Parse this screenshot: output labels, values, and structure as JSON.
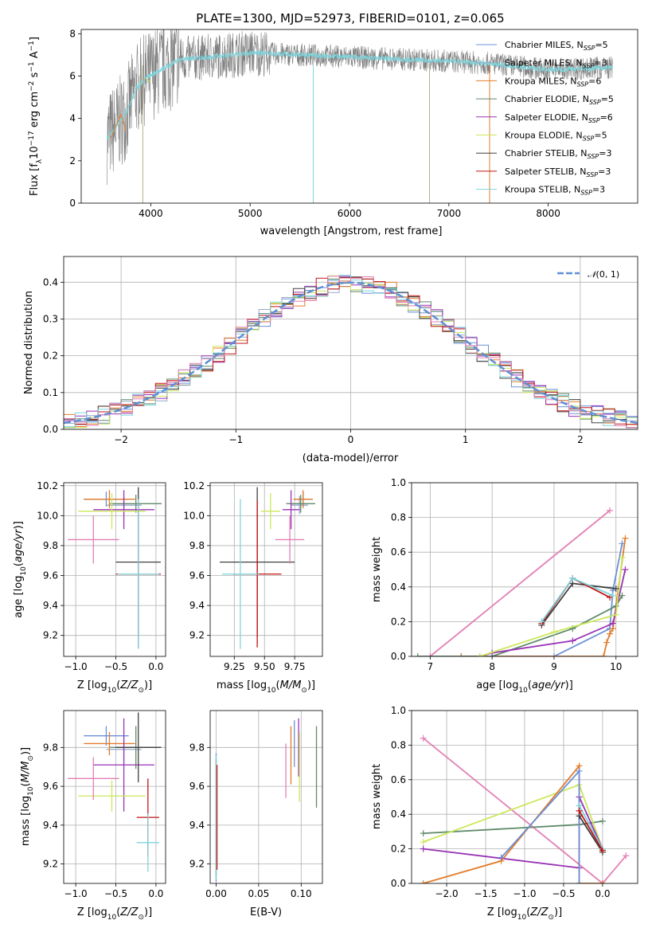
{
  "figure_title": "PLATE=1300, MJD=52973, FIBERID=0101, z=0.065",
  "colors": {
    "Chabrier MILES": "#6b8fd6",
    "Salpeter MILES": "#9aa8c8",
    "Kroupa MILES": "#e37c2a",
    "Chabrier ELODIE": "#5f8a6a",
    "Salpeter ELODIE": "#9932b5",
    "Kroupa ELODIE": "#cbe85a",
    "Chabrier STELIB": "#404040",
    "Salpeter STELIB": "#c41414",
    "Kroupa STELIB": "#7ed4dc",
    "pink": "#e37fb4",
    "data": "#808080",
    "normal_curve": "#5f8fd6"
  },
  "chart_data": [
    {
      "id": "spectrum",
      "type": "line",
      "title": "PLATE=1300, MJD=52973, FIBERID=0101, z=0.065",
      "xlabel": "wavelength [Angstrom, rest frame]",
      "ylabel": "Flux [f_λ 10^-17 erg cm^-2 s^-1 A^-1]",
      "xlim": [
        3300,
        8900
      ],
      "ylim": [
        0,
        8.2
      ],
      "xticks": [
        4000,
        5000,
        6000,
        7000,
        8000
      ],
      "yticks": [
        0,
        2,
        4,
        6,
        8
      ],
      "grid": false,
      "legend_placement": "right",
      "legend": [
        "Chabrier MILES, N_SSP=5",
        "Salpeter MILES, N_SSP=3",
        "Kroupa MILES, N_SSP=6",
        "Chabrier ELODIE, N_SSP=5",
        "Salpeter ELODIE, N_SSP=6",
        "Kroupa ELODIE, N_SSP=5",
        "Chabrier STELIB, N_SSP=3",
        "Salpeter STELIB, N_SSP=3",
        "Kroupa STELIB, N_SSP=3"
      ],
      "continuum": {
        "x": [
          3550,
          3650,
          3750,
          3850,
          3950,
          4100,
          4300,
          4600,
          5000,
          5500,
          6000,
          6500,
          7000,
          7400,
          8000,
          8600
        ],
        "y": [
          3.0,
          3.6,
          4.2,
          5.4,
          5.9,
          6.3,
          6.8,
          6.9,
          7.1,
          7.0,
          6.9,
          6.8,
          6.7,
          6.6,
          6.3,
          6.4
        ]
      }
    },
    {
      "id": "residual_histogram",
      "type": "line",
      "xlabel": "(data-model)/error",
      "ylabel": "Normed distribution",
      "xlim": [
        -2.5,
        2.5
      ],
      "ylim": [
        0,
        0.47
      ],
      "xticks": [
        -2,
        -1,
        0,
        1,
        2
      ],
      "yticks": [
        0.0,
        0.1,
        0.2,
        0.3,
        0.4
      ],
      "grid": true,
      "legend_placement": "top-right",
      "legend": [
        "N(0,1)"
      ],
      "curve": "normal pdf, mean 0, sigma 1",
      "bin_width": 0.1
    },
    {
      "id": "age_vs_Z",
      "type": "scatter",
      "xlabel": "Z [log10(Z/Z_sun)]",
      "ylabel": "age [log10(age/yr)]",
      "xlim": [
        -1.15,
        0.12
      ],
      "ylim": [
        9.06,
        10.22
      ],
      "xticks": [
        -1.0,
        -0.5,
        0.0
      ],
      "yticks": [
        9.2,
        9.4,
        9.6,
        9.8,
        10.0,
        10.2
      ],
      "grid": true,
      "points": [
        {
          "series": "Chabrier MILES",
          "x": -0.62,
          "xerr": 0.28,
          "y": 10.11,
          "yerr": 0.05
        },
        {
          "series": "Salpeter MILES",
          "x": -0.4,
          "xerr": 0.22,
          "y": 10.07,
          "yerr": 0.06
        },
        {
          "series": "Kroupa MILES",
          "x": -0.58,
          "xerr": 0.32,
          "y": 10.11,
          "yerr": 0.06
        },
        {
          "series": "Chabrier ELODIE",
          "x": -0.25,
          "xerr": 0.32,
          "y": 10.08,
          "yerr": 0.06
        },
        {
          "series": "Salpeter ELODIE",
          "x": -0.4,
          "xerr": 0.38,
          "y": 10.04,
          "yerr": 0.13
        },
        {
          "series": "Kroupa ELODIE",
          "x": -0.55,
          "xerr": 0.42,
          "y": 10.03,
          "yerr": 0.12
        },
        {
          "series": "Chabrier STELIB",
          "x": -0.22,
          "xerr": 0.28,
          "y": 9.69,
          "yerr": 0.5
        },
        {
          "series": "Salpeter STELIB",
          "x": -0.22,
          "xerr": 0.28,
          "y": 9.61,
          "yerr": 0.49
        },
        {
          "series": "Kroupa STELIB",
          "x": -0.22,
          "xerr": 0.26,
          "y": 9.61,
          "yerr": 0.5
        },
        {
          "series": "pink",
          "x": -0.78,
          "xerr": 0.32,
          "y": 9.84,
          "yerr": 0.16
        }
      ]
    },
    {
      "id": "age_vs_mass",
      "type": "scatter",
      "xlabel": "mass [log10(M/M_sun)]",
      "ylabel": "",
      "xlim": [
        9.05,
        9.98
      ],
      "ylim": [
        9.06,
        10.22
      ],
      "xticks": [
        9.25,
        9.5,
        9.75
      ],
      "yticks": [
        9.2,
        9.4,
        9.6,
        9.8,
        10.0,
        10.2
      ],
      "grid": true,
      "points": [
        {
          "series": "Chabrier MILES",
          "x": 9.82,
          "xerr": 0.08,
          "y": 10.11,
          "yerr": 0.05
        },
        {
          "series": "Salpeter MILES",
          "x": 9.79,
          "xerr": 0.07,
          "y": 10.07,
          "yerr": 0.06
        },
        {
          "series": "Kroupa MILES",
          "x": 9.82,
          "xerr": 0.08,
          "y": 10.11,
          "yerr": 0.06
        },
        {
          "series": "Chabrier ELODIE",
          "x": 9.8,
          "xerr": 0.12,
          "y": 10.08,
          "yerr": 0.06
        },
        {
          "series": "Salpeter ELODIE",
          "x": 9.72,
          "xerr": 0.07,
          "y": 10.04,
          "yerr": 0.13
        },
        {
          "series": "Kroupa ELODIE",
          "x": 9.55,
          "xerr": 0.08,
          "y": 10.03,
          "yerr": 0.12
        },
        {
          "series": "Chabrier STELIB",
          "x": 9.44,
          "xerr": 0.31,
          "y": 9.69,
          "yerr": 0.5
        },
        {
          "series": "Salpeter STELIB",
          "x": 9.44,
          "xerr": 0.2,
          "y": 9.61,
          "yerr": 0.49
        },
        {
          "series": "Kroupa STELIB",
          "x": 9.3,
          "xerr": 0.15,
          "y": 9.61,
          "yerr": 0.5
        },
        {
          "series": "pink",
          "x": 9.71,
          "xerr": 0.12,
          "y": 9.84,
          "yerr": 0.16
        }
      ]
    },
    {
      "id": "massweight_vs_age",
      "type": "line",
      "xlabel": "age [log10(age/yr)]",
      "ylabel": "mass weight",
      "xlim": [
        6.7,
        10.35
      ],
      "ylim": [
        0.0,
        1.0
      ],
      "xticks": [
        7,
        8,
        9,
        10
      ],
      "yticks": [
        0.0,
        0.2,
        0.4,
        0.6,
        0.8,
        1.0
      ],
      "grid": true,
      "series": [
        {
          "name": "pink",
          "x": [
            7.0,
            9.9
          ],
          "y": [
            0.0,
            0.84
          ]
        },
        {
          "name": "Chabrier MILES",
          "x": [
            7.5,
            9.0,
            9.9,
            9.95,
            10.1
          ],
          "y": [
            0.0,
            0.0,
            0.16,
            0.38,
            0.65
          ]
        },
        {
          "name": "Kroupa MILES",
          "x": [
            7.5,
            9.8,
            9.85,
            9.9,
            9.95,
            10.15
          ],
          "y": [
            0.0,
            0.0,
            0.08,
            0.13,
            0.16,
            0.68
          ]
        },
        {
          "name": "Chabrier ELODIE",
          "x": [
            6.8,
            8.0,
            9.3,
            10.0,
            10.1
          ],
          "y": [
            0.0,
            0.0,
            0.16,
            0.29,
            0.35
          ]
        },
        {
          "name": "Salpeter ELODIE",
          "x": [
            7.8,
            8.0,
            9.3,
            9.95,
            10.15
          ],
          "y": [
            0.0,
            0.02,
            0.09,
            0.19,
            0.5
          ]
        },
        {
          "name": "Kroupa ELODIE",
          "x": [
            7.8,
            9.0,
            10.0,
            10.1
          ],
          "y": [
            0.0,
            0.14,
            0.24,
            0.57
          ]
        },
        {
          "name": "Chabrier STELIB",
          "x": [
            8.8,
            9.3,
            10.0
          ],
          "y": [
            0.18,
            0.42,
            0.39
          ]
        },
        {
          "name": "Salpeter STELIB",
          "x": [
            8.8,
            9.3,
            9.9
          ],
          "y": [
            0.19,
            0.45,
            0.34
          ]
        },
        {
          "name": "Kroupa STELIB",
          "x": [
            8.8,
            9.3,
            9.95
          ],
          "y": [
            0.2,
            0.45,
            0.35
          ]
        }
      ]
    },
    {
      "id": "mass_vs_Z",
      "type": "scatter",
      "xlabel": "Z [log10(Z/Z_sun)]",
      "ylabel": "mass [log10(M/M_sun)]",
      "xlim": [
        -1.15,
        0.12
      ],
      "ylim": [
        9.1,
        9.99
      ],
      "xticks": [
        -1.0,
        -0.5,
        0.0
      ],
      "yticks": [
        9.2,
        9.4,
        9.6,
        9.8
      ],
      "grid": true,
      "points": [
        {
          "series": "Chabrier MILES",
          "x": -0.62,
          "xerr": 0.28,
          "y": 9.86,
          "yerr": 0.05
        },
        {
          "series": "Salpeter MILES",
          "x": -0.4,
          "xerr": 0.22,
          "y": 9.79,
          "yerr": 0.06
        },
        {
          "series": "Kroupa MILES",
          "x": -0.58,
          "xerr": 0.32,
          "y": 9.82,
          "yerr": 0.06
        },
        {
          "series": "Chabrier ELODIE",
          "x": -0.25,
          "xerr": 0.32,
          "y": 9.8,
          "yerr": 0.11
        },
        {
          "series": "Salpeter ELODIE",
          "x": -0.4,
          "xerr": 0.38,
          "y": 9.71,
          "yerr": 0.24
        },
        {
          "series": "Kroupa ELODIE",
          "x": -0.55,
          "xerr": 0.42,
          "y": 9.55,
          "yerr": 0.08
        },
        {
          "series": "Chabrier STELIB",
          "x": -0.22,
          "xerr": 0.28,
          "y": 9.8,
          "yerr": 0.18
        },
        {
          "series": "Salpeter STELIB",
          "x": -0.1,
          "xerr": 0.14,
          "y": 9.44,
          "yerr": 0.2
        },
        {
          "series": "Kroupa STELIB",
          "x": -0.1,
          "xerr": 0.14,
          "y": 9.31,
          "yerr": 0.15
        },
        {
          "series": "pink",
          "x": -0.78,
          "xerr": 0.32,
          "y": 9.64,
          "yerr": 0.11
        }
      ]
    },
    {
      "id": "mass_vs_ebv",
      "type": "scatter",
      "xlabel": "E(B-V)",
      "ylabel": "",
      "xlim": [
        -0.007,
        0.125
      ],
      "ylim": [
        9.1,
        9.99
      ],
      "xticks": [
        0.0,
        0.05,
        0.1
      ],
      "yticks": [
        9.2,
        9.4,
        9.6,
        9.8
      ],
      "grid": true,
      "points": [
        {
          "series": "Chabrier MILES",
          "x": 0.0,
          "y": 9.44,
          "yerr": 0.33
        },
        {
          "series": "Salpeter MILES",
          "x": 0.0,
          "y": 9.44,
          "yerr": 0.3
        },
        {
          "series": "Kroupa MILES",
          "x": 0.0,
          "y": 9.44,
          "yerr": 0.3
        },
        {
          "series": "Kroupa STELIB",
          "x": 0.0,
          "y": 9.44,
          "yerr": 0.32
        },
        {
          "series": "Salpeter STELIB",
          "x": 0.001,
          "y": 9.44,
          "yerr": 0.27
        },
        {
          "series": "pink",
          "x": 0.082,
          "y": 9.68,
          "yerr": 0.14
        },
        {
          "series": "Kroupa MILES",
          "x": 0.088,
          "y": 9.76,
          "yerr": 0.15
        },
        {
          "series": "Chabrier MILES",
          "x": 0.092,
          "y": 9.82,
          "yerr": 0.12
        },
        {
          "series": "Salpeter ELODIE",
          "x": 0.097,
          "y": 9.8,
          "yerr": 0.15
        },
        {
          "series": "Kroupa ELODIE",
          "x": 0.098,
          "y": 9.7,
          "yerr": 0.18
        },
        {
          "series": "Chabrier ELODIE",
          "x": 0.118,
          "y": 9.7,
          "yerr": 0.21
        }
      ]
    },
    {
      "id": "massweight_vs_Z",
      "type": "line",
      "xlabel": "Z [log10(Z/Z_sun)]",
      "ylabel": "mass weight",
      "xlim": [
        -2.45,
        0.45
      ],
      "ylim": [
        0.0,
        1.0
      ],
      "xticks": [
        -2.0,
        -1.5,
        -1.0,
        -0.5,
        0.0
      ],
      "yticks": [
        0.0,
        0.2,
        0.4,
        0.6,
        0.8,
        1.0
      ],
      "grid": true,
      "series": [
        {
          "name": "pink",
          "x": [
            -2.3,
            0.0,
            0.3
          ],
          "y": [
            0.84,
            0.0,
            0.16
          ]
        },
        {
          "name": "Chabrier ELODIE",
          "x": [
            -2.3,
            -0.3,
            0.0
          ],
          "y": [
            0.29,
            0.34,
            0.36
          ]
        },
        {
          "name": "Kroupa ELODIE",
          "x": [
            -2.3,
            -0.3,
            0.0
          ],
          "y": [
            0.24,
            0.57,
            0.2
          ]
        },
        {
          "name": "Salpeter ELODIE",
          "x": [
            -2.3,
            -0.3,
            -0.3,
            0.0
          ],
          "y": [
            0.2,
            0.09,
            0.5,
            0.2
          ]
        },
        {
          "name": "Kroupa MILES",
          "x": [
            -2.3,
            -1.3,
            -0.3,
            -0.3,
            0.0
          ],
          "y": [
            0.0,
            0.13,
            0.68,
            0.0,
            0.0
          ]
        },
        {
          "name": "Chabrier MILES",
          "x": [
            -1.3,
            -0.3,
            -0.3
          ],
          "y": [
            0.15,
            0.65,
            0.0
          ]
        },
        {
          "name": "Chabrier STELIB",
          "x": [
            -0.3,
            0.0
          ],
          "y": [
            0.39,
            0.18
          ]
        },
        {
          "name": "Kroupa STELIB",
          "x": [
            -0.3,
            0.0
          ],
          "y": [
            0.45,
            0.2
          ]
        },
        {
          "name": "Salpeter STELIB",
          "x": [
            -0.3,
            0.0
          ],
          "y": [
            0.42,
            0.19
          ]
        }
      ]
    }
  ]
}
